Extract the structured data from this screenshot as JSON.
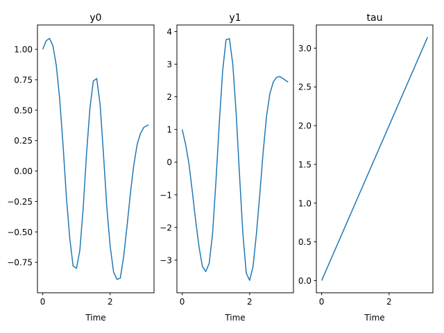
{
  "chart_data": [
    {
      "type": "line",
      "title": "y0",
      "xlabel": "Time",
      "ylabel": "",
      "xlim": [
        -0.157,
        3.299
      ],
      "ylim": [
        -1.0,
        1.2
      ],
      "xticks": [
        0,
        2
      ],
      "xtick_labels": [
        "0",
        "2"
      ],
      "yticks": [
        -0.75,
        -0.5,
        -0.25,
        0.0,
        0.25,
        0.5,
        0.75,
        1.0
      ],
      "ytick_labels": [
        "−0.75",
        "−0.50",
        "−0.25",
        "0.00",
        "0.25",
        "0.50",
        "0.75",
        "1.00"
      ],
      "grid": false,
      "color": "#1f77b4",
      "x": [
        0.0,
        0.1,
        0.2,
        0.3,
        0.4,
        0.5,
        0.6,
        0.7,
        0.8,
        0.9,
        1.0,
        1.1,
        1.2,
        1.3,
        1.4,
        1.5,
        1.6,
        1.7,
        1.8,
        1.9,
        2.0,
        2.1,
        2.2,
        2.3,
        2.4,
        2.5,
        2.6,
        2.7,
        2.8,
        2.9,
        3.0,
        3.1416
      ],
      "y": [
        1.0,
        1.07,
        1.09,
        1.03,
        0.87,
        0.6,
        0.22,
        -0.21,
        -0.55,
        -0.78,
        -0.8,
        -0.65,
        -0.3,
        0.15,
        0.52,
        0.74,
        0.76,
        0.55,
        0.14,
        -0.3,
        -0.62,
        -0.83,
        -0.89,
        -0.88,
        -0.7,
        -0.45,
        -0.18,
        0.05,
        0.22,
        0.31,
        0.36,
        0.38
      ]
    },
    {
      "type": "line",
      "title": "y1",
      "xlabel": "Time",
      "ylabel": "",
      "xlim": [
        -0.157,
        3.299
      ],
      "ylim": [
        -4.0,
        4.2
      ],
      "xticks": [
        0,
        2
      ],
      "xtick_labels": [
        "0",
        "2"
      ],
      "yticks": [
        -3,
        -2,
        -1,
        0,
        1,
        2,
        3,
        4
      ],
      "ytick_labels": [
        "−3",
        "−2",
        "−1",
        "0",
        "1",
        "2",
        "3",
        "4"
      ],
      "grid": false,
      "color": "#1f77b4",
      "x": [
        0.0,
        0.1,
        0.2,
        0.3,
        0.4,
        0.5,
        0.6,
        0.7,
        0.8,
        0.9,
        1.0,
        1.1,
        1.2,
        1.3,
        1.4,
        1.5,
        1.6,
        1.7,
        1.8,
        1.9,
        2.0,
        2.1,
        2.2,
        2.3,
        2.4,
        2.5,
        2.6,
        2.7,
        2.8,
        2.9,
        3.0,
        3.1416
      ],
      "y": [
        1.0,
        0.55,
        -0.05,
        -0.9,
        -1.8,
        -2.6,
        -3.2,
        -3.35,
        -3.1,
        -2.2,
        -0.6,
        1.2,
        2.8,
        3.75,
        3.78,
        3.0,
        1.5,
        -0.4,
        -2.2,
        -3.4,
        -3.62,
        -3.2,
        -2.2,
        -1.0,
        0.3,
        1.4,
        2.1,
        2.45,
        2.6,
        2.62,
        2.55,
        2.45
      ]
    },
    {
      "type": "line",
      "title": "tau",
      "xlabel": "Time",
      "ylabel": "",
      "xlim": [
        -0.157,
        3.299
      ],
      "ylim": [
        -0.157,
        3.299
      ],
      "xticks": [
        0,
        2
      ],
      "xtick_labels": [
        "0",
        "2"
      ],
      "yticks": [
        0.0,
        0.5,
        1.0,
        1.5,
        2.0,
        2.5,
        3.0
      ],
      "ytick_labels": [
        "0.0",
        "0.5",
        "1.0",
        "1.5",
        "2.0",
        "2.5",
        "3.0"
      ],
      "grid": false,
      "color": "#1f77b4",
      "x": [
        0.0,
        3.1416
      ],
      "y": [
        0.0,
        3.1416
      ]
    }
  ]
}
